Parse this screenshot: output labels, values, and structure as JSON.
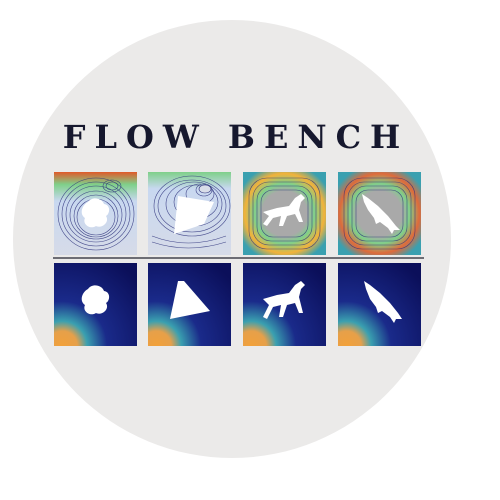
{
  "logo": {
    "title": "FLOW BENCH",
    "background_color": "#ebeae9",
    "title_color": "#16182e"
  },
  "streamline_panels": [
    {
      "obstacle": "blob-icon"
    },
    {
      "obstacle": "polygon-icon"
    },
    {
      "obstacle": "horse-icon"
    },
    {
      "obstacle": "shark-icon"
    }
  ],
  "field_panels": [
    {
      "obstacle": "blob-icon"
    },
    {
      "obstacle": "polygon-icon"
    },
    {
      "obstacle": "horse-icon"
    },
    {
      "obstacle": "shark-icon"
    }
  ],
  "colors": {
    "field_low": "#0b0f5a",
    "field_high": "#f2a13a",
    "streamline": "#2b2f7a"
  }
}
